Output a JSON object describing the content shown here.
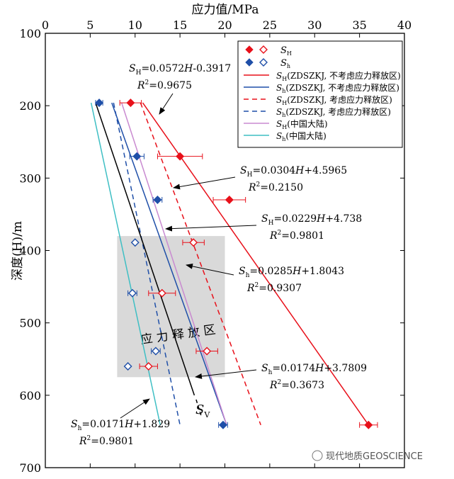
{
  "chart_data": {
    "type": "scatter",
    "xlabel_top": "应力值/MPa",
    "ylabel": "深度(H)/m",
    "xlim": [
      0,
      40
    ],
    "ylim": [
      100,
      700
    ],
    "y_inverted": true,
    "x_axis_position": "top",
    "x_ticks": [
      "0",
      "5",
      "10",
      "15",
      "20",
      "25",
      "30",
      "35",
      "40"
    ],
    "y_ticks": [
      "100",
      "200",
      "300",
      "400",
      "500",
      "600",
      "700"
    ],
    "grid": false,
    "release_zone": {
      "label": "应 力 释 放 区",
      "x_range": [
        8,
        20
      ],
      "y_range": [
        380,
        575
      ],
      "color": "#d9d9d9"
    },
    "series": [
      {
        "name": "S_H",
        "sub": "H",
        "color": "#e8101a",
        "marker": "diamond",
        "points": [
          {
            "x": 9.5,
            "y": 196,
            "err": 1.2,
            "filled": true
          },
          {
            "x": 15,
            "y": 270,
            "err": 2.5,
            "filled": true
          },
          {
            "x": 20.5,
            "y": 330,
            "err": 1.8,
            "filled": true
          },
          {
            "x": 16.5,
            "y": 389,
            "err": 1.2,
            "filled": false
          },
          {
            "x": 13,
            "y": 459,
            "err": 1.5,
            "filled": false
          },
          {
            "x": 18,
            "y": 539,
            "err": 1.2,
            "filled": false
          },
          {
            "x": 11.5,
            "y": 560,
            "err": 1.0,
            "filled": false
          },
          {
            "x": 36,
            "y": 641,
            "err": 1.0,
            "filled": true
          }
        ]
      },
      {
        "name": "S_h",
        "sub": "h",
        "color": "#1f4fa8",
        "marker": "diamond",
        "points": [
          {
            "x": 6,
            "y": 196,
            "err": 0.4,
            "filled": true
          },
          {
            "x": 10.2,
            "y": 270,
            "err": 0.8,
            "filled": true
          },
          {
            "x": 12.5,
            "y": 330,
            "err": 0.5,
            "filled": true
          },
          {
            "x": 10,
            "y": 389,
            "err": 0,
            "filled": false
          },
          {
            "x": 9.7,
            "y": 459,
            "err": 0.5,
            "filled": false
          },
          {
            "x": 12.3,
            "y": 539,
            "err": 0.5,
            "filled": false
          },
          {
            "x": 9.2,
            "y": 560,
            "err": 0,
            "filled": false
          },
          {
            "x": 19.8,
            "y": 641,
            "err": 0.5,
            "filled": true
          }
        ]
      }
    ],
    "lines": [
      {
        "legend_sub": "H",
        "label": "(ZDSZKJ, 不考虑应力释放区)",
        "color": "#e8101a",
        "dash": "",
        "x0": 10.85,
        "y0": 196,
        "x1": 36,
        "y1": 641
      },
      {
        "legend_sub": "h",
        "label": "(ZDSZKJ, 不考虑应力释放区)",
        "color": "#1f4fa8",
        "dash": "",
        "x0": 7.4,
        "y0": 196,
        "x1": 20.2,
        "y1": 641
      },
      {
        "legend_sub": "H",
        "label": "(ZDSZKJ, 考虑应力释放区)",
        "color": "#e8101a",
        "dash": "7,5",
        "x0": 10.6,
        "y0": 196,
        "x1": 24,
        "y1": 641
      },
      {
        "legend_sub": "h",
        "label": "(ZDSZKJ, 考虑应力释放区)",
        "color": "#1f4fa8",
        "dash": "7,5",
        "x0": 7.6,
        "y0": 196,
        "x1": 15,
        "y1": 641
      },
      {
        "legend_sub": "H",
        "label": "(中国大陆)",
        "color": "#c98ad0",
        "dash": "",
        "x0": 8.5,
        "y0": 196,
        "x1": 20.2,
        "y1": 641
      },
      {
        "legend_sub": "h",
        "label": "(中国大陆)",
        "color": "#3fbfc4",
        "dash": "",
        "x0": 5.1,
        "y0": 196,
        "x1": 12.8,
        "y1": 641
      }
    ],
    "sv_line": {
      "label": "S",
      "sub": "V",
      "color": "#000000",
      "x0": 5.6,
      "y0": 196,
      "x1": 16.6,
      "y1": 600
    },
    "annotations": [
      {
        "lines": [
          "S_H=0.0572H-0.3917",
          "R²=0.9675"
        ],
        "pre": "S",
        "sub": "H",
        "eq": "=0.0572",
        "var": "H",
        "rest": "-0.3917",
        "r2": "=0.9675"
      },
      {
        "pre": "S",
        "sub": "H",
        "eq": "=0.0304",
        "var": "H",
        "rest": "+4.5965",
        "r2": "=0.2150"
      },
      {
        "pre": "S",
        "sub": "H",
        "eq": "=0.0229",
        "var": "H",
        "rest": "+4.738",
        "r2": "=0.9801"
      },
      {
        "pre": "S",
        "sub": "h",
        "eq": "=0.0285",
        "var": "H",
        "rest": "+1.8043",
        "r2": "=0.9307"
      },
      {
        "pre": "S",
        "sub": "h",
        "eq": "=0.0174",
        "var": "H",
        "rest": "+3.7809",
        "r2": "=0.3673"
      },
      {
        "pre": "S",
        "sub": "h",
        "eq": "=0.0171",
        "var": "H",
        "rest": "+1.829",
        "r2": "=0.9801"
      }
    ],
    "legend": {
      "marker_rows": [
        {
          "label": "S",
          "sub": "H"
        },
        {
          "label": "S",
          "sub": "h"
        }
      ]
    }
  },
  "watermark": "现代地质GEOSCIENCE"
}
